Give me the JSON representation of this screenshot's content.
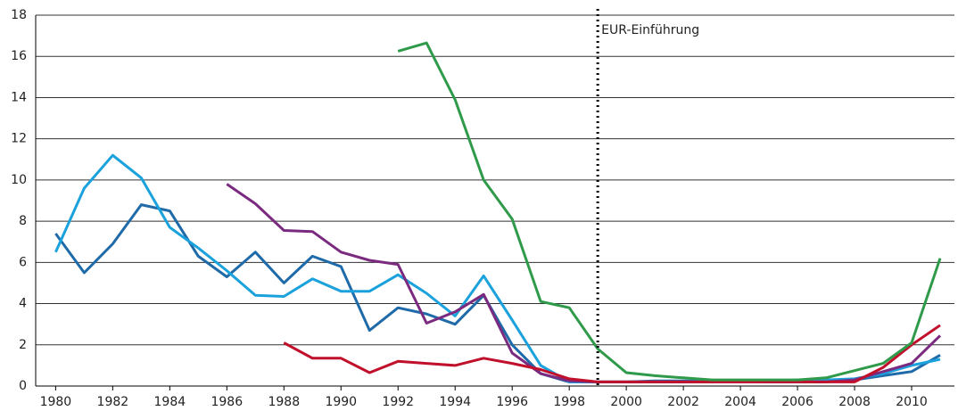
{
  "chart_data": {
    "type": "line",
    "x": [
      1980,
      1981,
      1982,
      1983,
      1984,
      1985,
      1986,
      1987,
      1988,
      1989,
      1990,
      1991,
      1992,
      1993,
      1994,
      1995,
      1996,
      1997,
      1998,
      1999,
      2000,
      2001,
      2002,
      2003,
      2004,
      2005,
      2006,
      2007,
      2008,
      2009,
      2010,
      2011
    ],
    "series": [
      {
        "color": "#1f6aa8",
        "values": [
          7.4,
          5.5,
          6.9,
          8.8,
          8.5,
          6.3,
          5.3,
          6.5,
          5.0,
          6.3,
          5.8,
          2.7,
          3.8,
          3.5,
          3.0,
          4.4,
          2.0,
          0.6,
          0.2,
          0.2,
          0.2,
          0.25,
          0.25,
          0.25,
          0.25,
          0.2,
          0.2,
          0.2,
          0.3,
          0.5,
          0.7,
          1.5
        ]
      },
      {
        "color": "#1ba1dc",
        "values": [
          6.5,
          9.6,
          11.2,
          10.1,
          7.7,
          6.7,
          5.6,
          4.4,
          4.35,
          5.2,
          4.6,
          4.6,
          5.4,
          4.5,
          3.4,
          5.35,
          3.2,
          1.0,
          0.2,
          0.2,
          0.2,
          0.2,
          0.2,
          0.25,
          0.25,
          0.25,
          0.3,
          0.3,
          0.35,
          0.6,
          1.0,
          1.3
        ]
      },
      {
        "color": "#7b2b7f",
        "values": [
          null,
          null,
          null,
          null,
          null,
          null,
          9.8,
          8.85,
          7.55,
          7.5,
          6.5,
          6.1,
          5.9,
          3.05,
          3.6,
          4.45,
          1.6,
          0.6,
          0.25,
          0.2,
          0.2,
          0.2,
          0.2,
          0.2,
          0.2,
          0.2,
          0.2,
          0.2,
          0.3,
          0.7,
          1.1,
          2.45
        ]
      },
      {
        "color": "#c0102b",
        "values": [
          null,
          null,
          null,
          null,
          null,
          null,
          null,
          null,
          2.1,
          1.35,
          1.35,
          0.65,
          1.2,
          1.1,
          1.0,
          1.35,
          1.1,
          0.8,
          0.35,
          0.2,
          0.2,
          0.2,
          0.2,
          0.2,
          0.2,
          0.2,
          0.2,
          0.2,
          0.2,
          0.9,
          2.0,
          2.95
        ]
      },
      {
        "color": "#2e9a4a",
        "values": [
          null,
          null,
          null,
          null,
          null,
          null,
          null,
          null,
          null,
          null,
          null,
          null,
          16.25,
          16.65,
          13.9,
          10.0,
          8.1,
          4.1,
          3.8,
          1.8,
          0.65,
          0.5,
          0.4,
          0.3,
          0.3,
          0.3,
          0.3,
          0.4,
          0.75,
          1.1,
          2.1,
          6.2
        ]
      }
    ],
    "xlim": [
      1979.3,
      2011.5
    ],
    "xticks": [
      1980,
      1982,
      1984,
      1986,
      1988,
      1990,
      1992,
      1994,
      1996,
      1998,
      2000,
      2002,
      2004,
      2006,
      2008,
      2010
    ],
    "ylim": [
      0,
      18
    ],
    "yticks": [
      0,
      2,
      4,
      6,
      8,
      10,
      12,
      14,
      16,
      18
    ],
    "grid": true,
    "vline": {
      "x": 1999,
      "label": "EUR-Einführung"
    }
  }
}
